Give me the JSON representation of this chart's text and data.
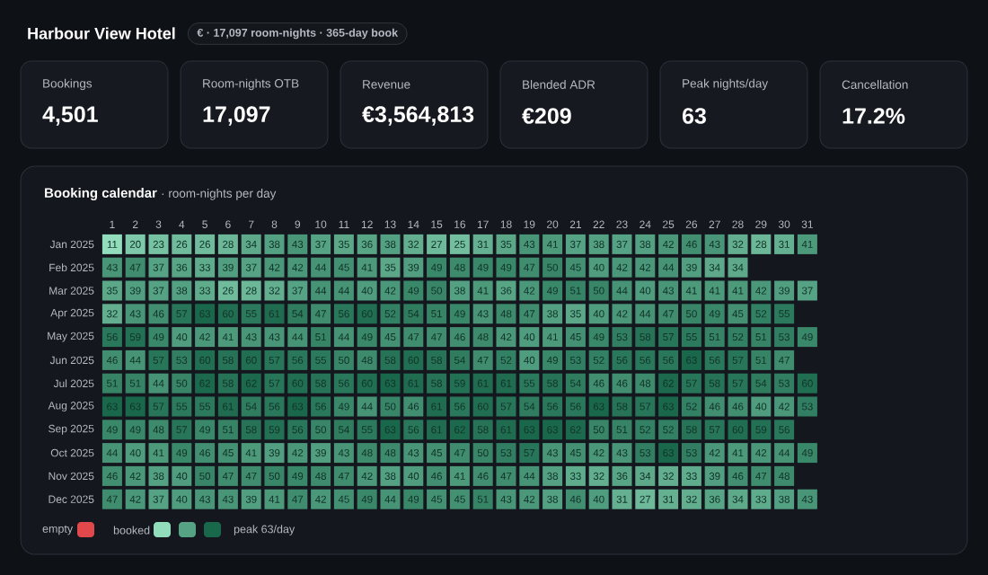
{
  "chart_data": [
    {
      "type": "other",
      "title": "Harbour View Hotel",
      "subtitle": "€ · 17,097 room-nights · 365-day book",
      "annotations": [
        "Bookings",
        "4,501",
        "Room-nights OTB",
        "17,097",
        "Revenue",
        "€3,564,813",
        "Blended ADR",
        "€209",
        "Peak nights/day",
        "63",
        "Cancellation",
        "17.2%"
      ]
    },
    {
      "type": "heatmap",
      "title": "Booking calendar",
      "subtitle": "· room-nights per day",
      "data_labels": true,
      "categories": [
        "1",
        "2",
        "3",
        "4",
        "5",
        "6",
        "7",
        "8",
        "9",
        "10",
        "11",
        "12",
        "13",
        "14",
        "15",
        "16",
        "17",
        "18",
        "19",
        "20",
        "21",
        "22",
        "23",
        "24",
        "25",
        "26",
        "27",
        "28",
        "29",
        "30",
        "31"
      ],
      "y_categories": [
        "Jan 2025",
        "Feb 2025",
        "Mar 2025",
        "Apr 2025",
        "May 2025",
        "Jun 2025",
        "Jul 2025",
        "Aug 2025",
        "Sep 2025",
        "Oct 2025",
        "Nov 2025",
        "Dec 2025"
      ],
      "cells": [
        [
          11,
          20,
          23,
          26,
          26,
          28,
          34,
          38,
          43,
          37,
          35,
          36,
          38,
          32,
          27,
          25,
          31,
          35,
          43,
          41,
          37,
          38,
          37,
          38,
          42,
          46,
          43,
          32,
          28,
          31,
          41
        ],
        [
          43,
          47,
          37,
          36,
          33,
          39,
          37,
          42,
          42,
          44,
          45,
          41,
          35,
          39,
          49,
          48,
          49,
          49,
          47,
          50,
          45,
          40,
          42,
          42,
          44,
          39,
          34,
          34,
          null,
          null,
          null
        ],
        [
          35,
          39,
          37,
          38,
          33,
          26,
          28,
          32,
          37,
          44,
          44,
          40,
          42,
          49,
          50,
          38,
          41,
          36,
          42,
          49,
          51,
          50,
          44,
          40,
          43,
          41,
          41,
          41,
          42,
          39,
          37
        ],
        [
          32,
          43,
          46,
          57,
          63,
          60,
          55,
          61,
          54,
          47,
          56,
          60,
          52,
          54,
          51,
          49,
          43,
          48,
          47,
          38,
          35,
          40,
          42,
          44,
          47,
          50,
          49,
          45,
          52,
          55,
          null
        ],
        [
          56,
          59,
          49,
          40,
          42,
          41,
          43,
          43,
          44,
          51,
          44,
          49,
          45,
          47,
          47,
          46,
          48,
          42,
          40,
          41,
          45,
          49,
          53,
          58,
          57,
          55,
          51,
          52,
          51,
          53,
          49
        ],
        [
          46,
          44,
          57,
          53,
          60,
          58,
          60,
          57,
          56,
          55,
          50,
          48,
          58,
          60,
          58,
          54,
          47,
          52,
          40,
          49,
          53,
          52,
          56,
          56,
          56,
          63,
          56,
          57,
          51,
          47,
          null
        ],
        [
          51,
          51,
          44,
          50,
          62,
          58,
          62,
          57,
          60,
          58,
          56,
          60,
          63,
          61,
          58,
          59,
          61,
          61,
          55,
          58,
          54,
          46,
          46,
          48,
          62,
          57,
          58,
          57,
          54,
          53,
          60
        ],
        [
          63,
          63,
          57,
          55,
          55,
          61,
          54,
          56,
          63,
          56,
          49,
          44,
          50,
          46,
          61,
          56,
          60,
          57,
          54,
          56,
          56,
          63,
          58,
          57,
          63,
          52,
          46,
          46,
          40,
          42,
          53
        ],
        [
          49,
          49,
          48,
          57,
          49,
          51,
          58,
          59,
          56,
          50,
          54,
          55,
          63,
          56,
          61,
          62,
          58,
          61,
          63,
          63,
          62,
          50,
          51,
          52,
          52,
          58,
          57,
          60,
          59,
          56,
          null
        ],
        [
          44,
          40,
          41,
          49,
          46,
          45,
          41,
          39,
          42,
          39,
          43,
          48,
          48,
          43,
          45,
          47,
          50,
          53,
          57,
          43,
          45,
          42,
          43,
          53,
          63,
          53,
          42,
          41,
          42,
          44,
          49
        ],
        [
          46,
          42,
          38,
          40,
          50,
          47,
          47,
          50,
          49,
          48,
          47,
          42,
          38,
          40,
          46,
          41,
          46,
          47,
          44,
          38,
          33,
          32,
          36,
          34,
          32,
          33,
          39,
          46,
          47,
          48,
          null
        ],
        [
          47,
          42,
          37,
          40,
          43,
          43,
          39,
          41,
          47,
          42,
          45,
          49,
          44,
          49,
          45,
          45,
          51,
          43,
          42,
          38,
          46,
          40,
          31,
          27,
          31,
          32,
          36,
          34,
          33,
          38,
          43
        ]
      ],
      "annotations": [
        "empty",
        "booked",
        "peak 63/day"
      ]
    }
  ]
}
